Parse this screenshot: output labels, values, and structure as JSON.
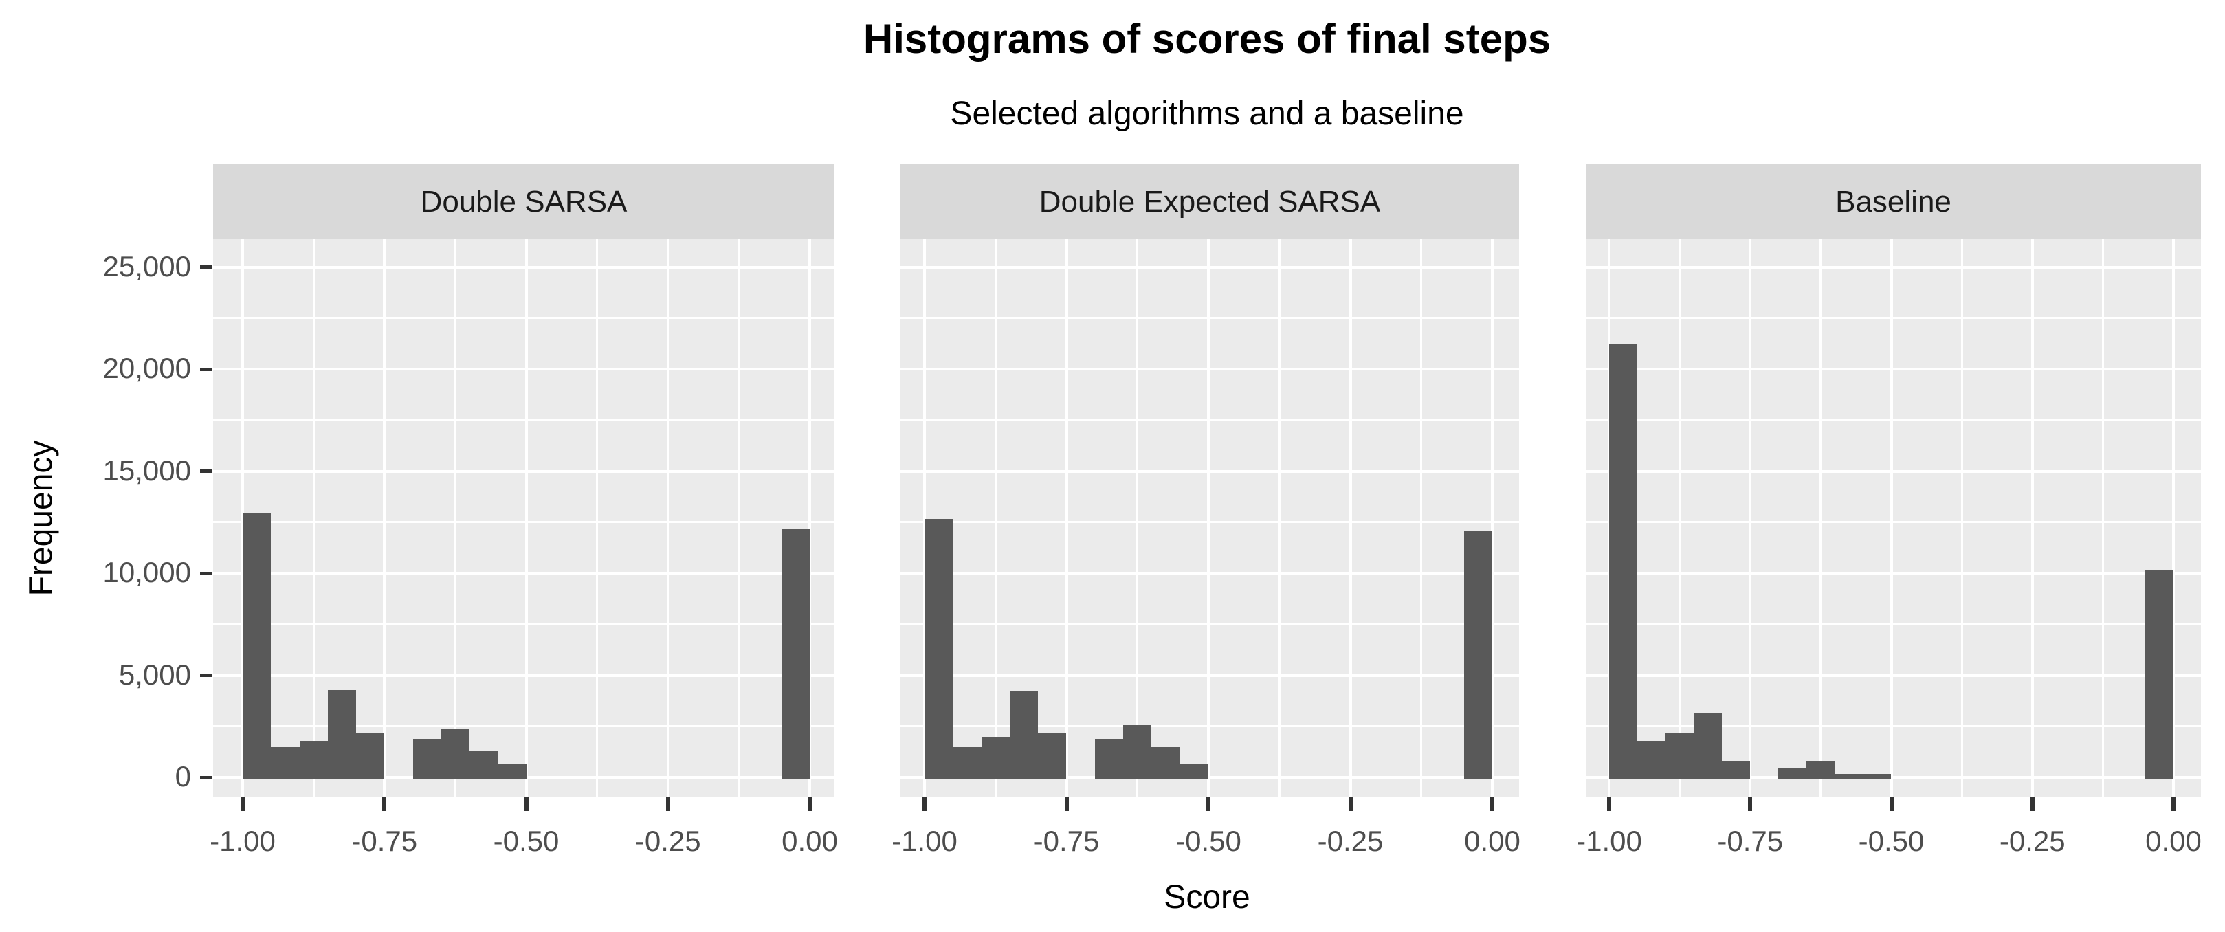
{
  "title": "Histograms of scores of final steps",
  "subtitle": "Selected algorithms and a baseline",
  "axes": {
    "x_label": "Score",
    "y_label": "Frequency",
    "x_ticks": [
      "-1.00",
      "-0.75",
      "-0.50",
      "-0.25",
      "0.00"
    ],
    "y_ticks": [
      "0",
      "5,000",
      "10,000",
      "15,000",
      "20,000",
      "25,000"
    ]
  },
  "facet_labels": [
    "Double SARSA",
    "Double Expected SARSA",
    "Baseline"
  ],
  "colors": {
    "bar": "#595959",
    "panel_bg": "#ebebeb",
    "strip_bg": "#d9d9d9",
    "grid": "#ffffff",
    "tick": "#333333",
    "axis_text": "#4d4d4d",
    "title_text": "#000000",
    "background": "#ffffff"
  },
  "chart_data": {
    "type": "bar",
    "subtype": "faceted-histogram",
    "title": "Histograms of scores of final steps",
    "subtitle": "Selected algorithms and a baseline",
    "xlabel": "Score",
    "ylabel": "Frequency",
    "bin_width": 0.05,
    "xlim": [
      -1.05,
      0.05
    ],
    "ylim": [
      -1000,
      26400
    ],
    "x_tick_values": [
      -1.0,
      -0.75,
      -0.5,
      -0.25,
      0.0
    ],
    "y_major_tick_values": [
      0,
      5000,
      10000,
      15000,
      20000,
      25000
    ],
    "y_minor_tick_values": [
      2500,
      7500,
      12500,
      17500,
      22500
    ],
    "grid": "on",
    "legend": "none",
    "facets": [
      {
        "label": "Double SARSA",
        "bins": [
          {
            "x0": -1.0,
            "x1": -0.95,
            "count": 12950
          },
          {
            "x0": -0.95,
            "x1": -0.9,
            "count": 1480
          },
          {
            "x0": -0.9,
            "x1": -0.85,
            "count": 1780
          },
          {
            "x0": -0.85,
            "x1": -0.8,
            "count": 4280
          },
          {
            "x0": -0.8,
            "x1": -0.75,
            "count": 2200
          },
          {
            "x0": -0.7,
            "x1": -0.65,
            "count": 1900
          },
          {
            "x0": -0.65,
            "x1": -0.6,
            "count": 2400
          },
          {
            "x0": -0.6,
            "x1": -0.55,
            "count": 1290
          },
          {
            "x0": -0.55,
            "x1": -0.5,
            "count": 670
          },
          {
            "x0": -0.05,
            "x1": 0.0,
            "count": 12200
          }
        ]
      },
      {
        "label": "Double Expected SARSA",
        "bins": [
          {
            "x0": -1.0,
            "x1": -0.95,
            "count": 12650
          },
          {
            "x0": -0.95,
            "x1": -0.9,
            "count": 1480
          },
          {
            "x0": -0.9,
            "x1": -0.85,
            "count": 1950
          },
          {
            "x0": -0.85,
            "x1": -0.8,
            "count": 4250
          },
          {
            "x0": -0.8,
            "x1": -0.75,
            "count": 2200
          },
          {
            "x0": -0.7,
            "x1": -0.65,
            "count": 1900
          },
          {
            "x0": -0.65,
            "x1": -0.6,
            "count": 2550
          },
          {
            "x0": -0.6,
            "x1": -0.55,
            "count": 1480
          },
          {
            "x0": -0.55,
            "x1": -0.5,
            "count": 690
          },
          {
            "x0": -0.05,
            "x1": 0.0,
            "count": 12100
          }
        ]
      },
      {
        "label": "Baseline",
        "bins": [
          {
            "x0": -1.0,
            "x1": -0.95,
            "count": 21200
          },
          {
            "x0": -0.95,
            "x1": -0.9,
            "count": 1800
          },
          {
            "x0": -0.9,
            "x1": -0.85,
            "count": 2200
          },
          {
            "x0": -0.85,
            "x1": -0.8,
            "count": 3150
          },
          {
            "x0": -0.8,
            "x1": -0.75,
            "count": 820
          },
          {
            "x0": -0.7,
            "x1": -0.65,
            "count": 480
          },
          {
            "x0": -0.65,
            "x1": -0.6,
            "count": 820
          },
          {
            "x0": -0.6,
            "x1": -0.55,
            "count": 170
          },
          {
            "x0": -0.55,
            "x1": -0.5,
            "count": 170
          },
          {
            "x0": -0.05,
            "x1": 0.0,
            "count": 10180
          }
        ]
      }
    ]
  }
}
